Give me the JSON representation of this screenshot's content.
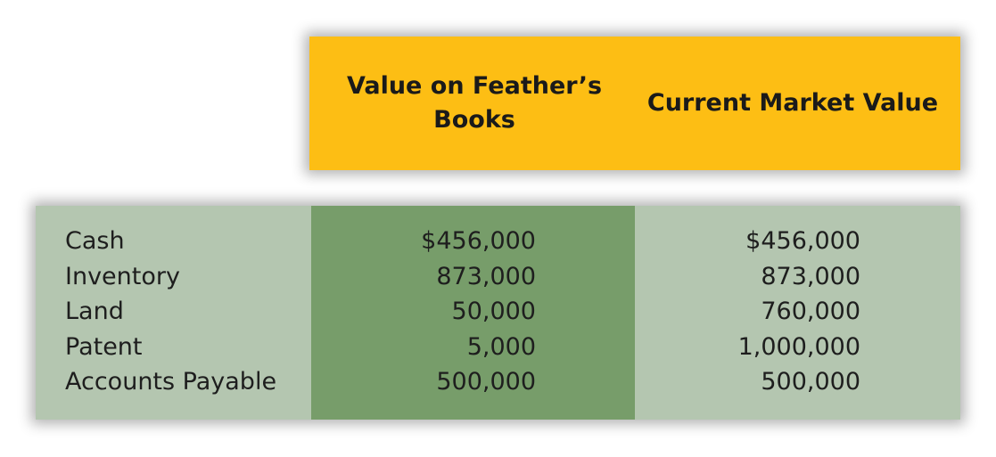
{
  "header": {
    "book_value_title": "Value on Feather’s Books",
    "market_value_title": "Current Market Value"
  },
  "rows": [
    {
      "label": "Cash",
      "book_value": "$456,000",
      "market_value": "$456,000"
    },
    {
      "label": "Inventory",
      "book_value": "873,000",
      "market_value": "873,000"
    },
    {
      "label": "Land",
      "book_value": "50,000",
      "market_value": "760,000"
    },
    {
      "label": "Patent",
      "book_value": "5,000",
      "market_value": "1,000,000"
    },
    {
      "label": "Accounts Payable",
      "book_value": "500,000",
      "market_value": "500,000"
    }
  ],
  "colors": {
    "header_background": "#fdbe14",
    "table_background": "#b4c6b0",
    "book_column_background": "#779d6a"
  }
}
